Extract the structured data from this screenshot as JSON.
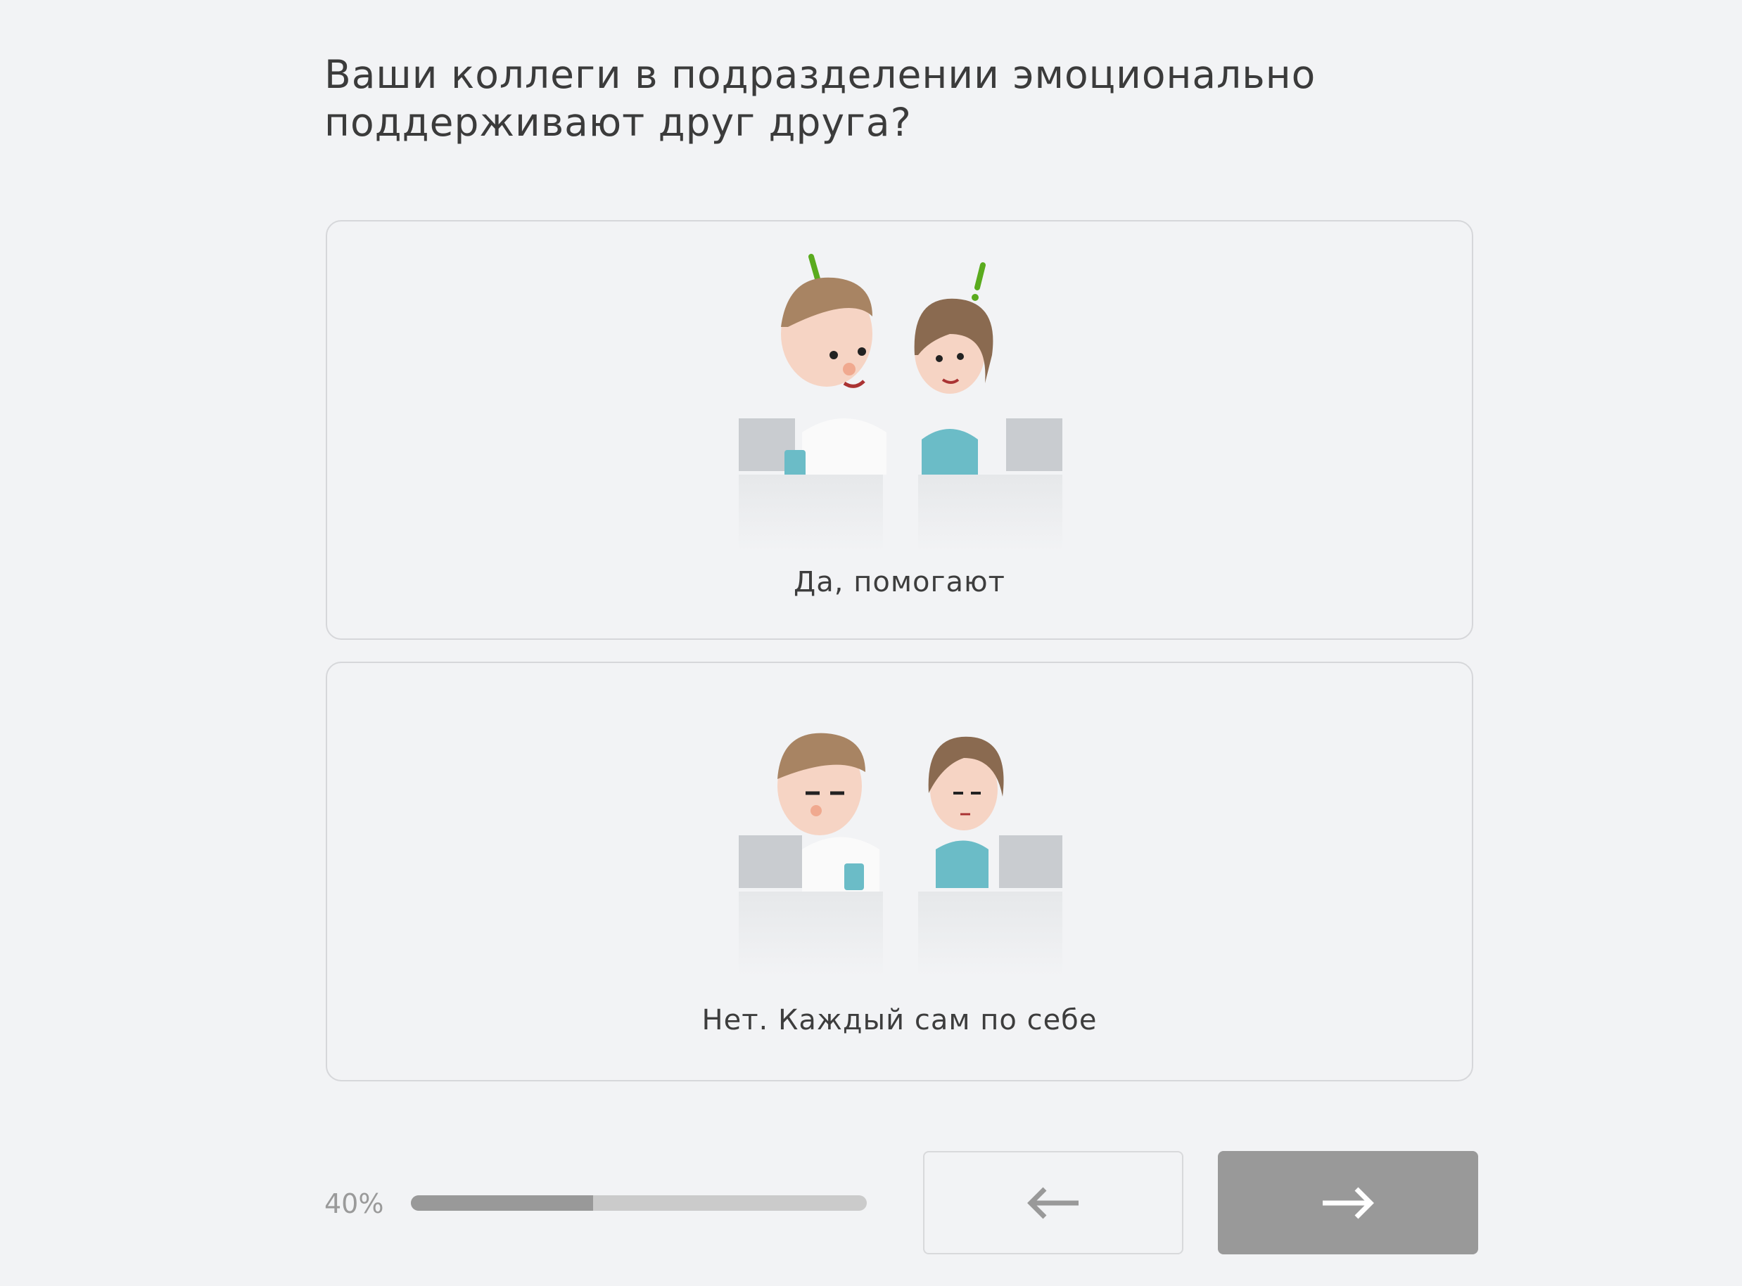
{
  "question": "Ваши коллеги в подразделении эмоционально поддерживают друг друга?",
  "options": [
    {
      "label": "Да, помогают",
      "illustration": "two-colleagues-talking"
    },
    {
      "label": "Нет. Каждый сам по себе",
      "illustration": "two-colleagues-working-alone"
    }
  ],
  "progress": {
    "label": "40%",
    "value": 40
  },
  "nav": {
    "back_icon": "arrow-left-icon",
    "next_icon": "arrow-right-icon"
  },
  "colors": {
    "background": "#f2f3f5",
    "accent_green": "#5aab1e",
    "progress_fill": "#999999",
    "progress_track": "#cbcbcb",
    "next_button": "#999999"
  }
}
